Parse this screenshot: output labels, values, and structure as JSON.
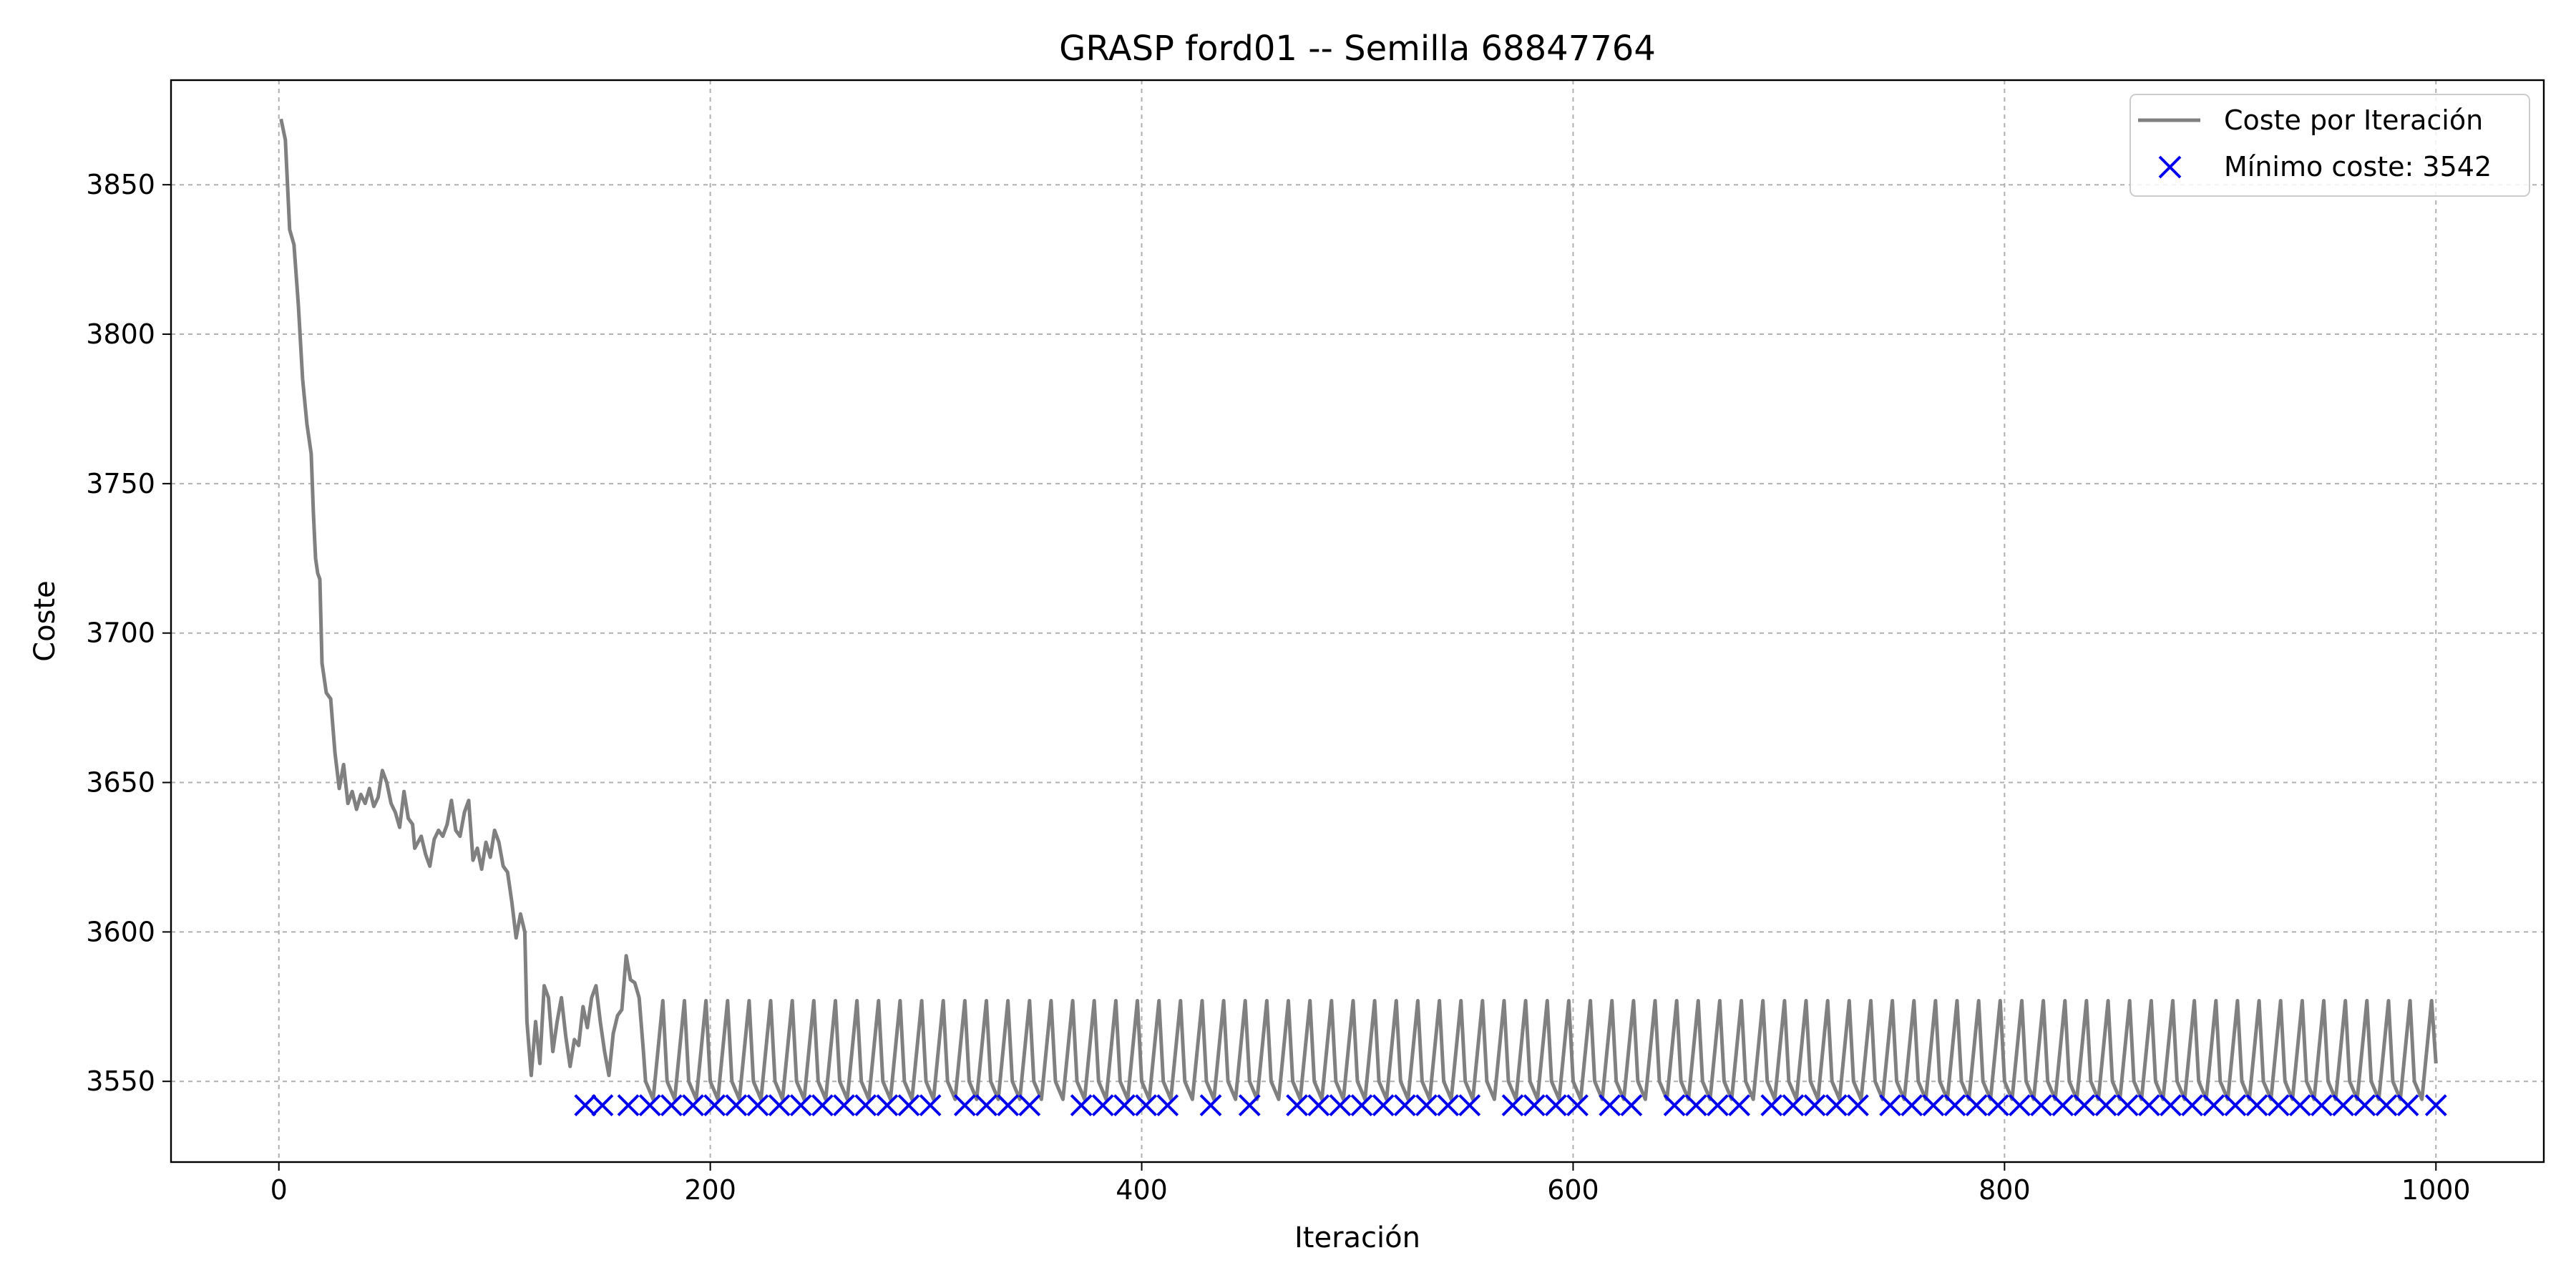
{
  "chart_data": {
    "type": "line",
    "title": "GRASP ford01 -- Semilla 68847764",
    "xlabel": "Iteración",
    "ylabel": "Coste",
    "xlim": [
      -50,
      1050
    ],
    "ylim": [
      3523,
      3885
    ],
    "xticks": [
      0,
      200,
      400,
      600,
      800,
      1000
    ],
    "yticks": [
      3550,
      3600,
      3650,
      3700,
      3750,
      3800,
      3850
    ],
    "grid": true,
    "legend_position": "top-right",
    "legend": {
      "line_label": "Coste por Iteración",
      "marker_label": "Mínimo coste: 3542"
    },
    "series": [
      {
        "name": "Coste por Iteración",
        "kind": "line",
        "color": "#808080",
        "points": [
          [
            1,
            3872
          ],
          [
            3,
            3865
          ],
          [
            5,
            3835
          ],
          [
            7,
            3830
          ],
          [
            9,
            3810
          ],
          [
            11,
            3785
          ],
          [
            13,
            3770
          ],
          [
            15,
            3760
          ],
          [
            16,
            3740
          ],
          [
            17,
            3725
          ],
          [
            18,
            3720
          ],
          [
            19,
            3718
          ],
          [
            20,
            3690
          ],
          [
            22,
            3680
          ],
          [
            24,
            3678
          ],
          [
            26,
            3660
          ],
          [
            28,
            3648
          ],
          [
            30,
            3656
          ],
          [
            32,
            3643
          ],
          [
            34,
            3647
          ],
          [
            36,
            3641
          ],
          [
            38,
            3646
          ],
          [
            40,
            3643
          ],
          [
            42,
            3648
          ],
          [
            44,
            3642
          ],
          [
            46,
            3645
          ],
          [
            48,
            3654
          ],
          [
            50,
            3650
          ],
          [
            52,
            3643
          ],
          [
            54,
            3640
          ],
          [
            56,
            3635
          ],
          [
            58,
            3647
          ],
          [
            60,
            3638
          ],
          [
            62,
            3636
          ],
          [
            63,
            3628
          ],
          [
            66,
            3632
          ],
          [
            68,
            3626
          ],
          [
            70,
            3622
          ],
          [
            72,
            3631
          ],
          [
            74,
            3634
          ],
          [
            76,
            3632
          ],
          [
            78,
            3636
          ],
          [
            80,
            3644
          ],
          [
            82,
            3634
          ],
          [
            84,
            3632
          ],
          [
            86,
            3640
          ],
          [
            88,
            3644
          ],
          [
            90,
            3624
          ],
          [
            92,
            3628
          ],
          [
            94,
            3621
          ],
          [
            96,
            3630
          ],
          [
            98,
            3625
          ],
          [
            100,
            3634
          ],
          [
            102,
            3630
          ],
          [
            104,
            3622
          ],
          [
            106,
            3620
          ],
          [
            108,
            3610
          ],
          [
            110,
            3598
          ],
          [
            112,
            3606
          ],
          [
            114,
            3600
          ],
          [
            115,
            3570
          ],
          [
            117,
            3552
          ],
          [
            119,
            3570
          ],
          [
            121,
            3556
          ],
          [
            123,
            3582
          ],
          [
            125,
            3578
          ],
          [
            127,
            3560
          ],
          [
            129,
            3570
          ],
          [
            131,
            3578
          ],
          [
            133,
            3565
          ],
          [
            135,
            3555
          ],
          [
            137,
            3564
          ],
          [
            139,
            3562
          ],
          [
            141,
            3575
          ],
          [
            143,
            3568
          ],
          [
            145,
            3578
          ],
          [
            147,
            3582
          ],
          [
            149,
            3570
          ],
          [
            151,
            3560
          ],
          [
            153,
            3552
          ],
          [
            155,
            3566
          ],
          [
            157,
            3572
          ],
          [
            159,
            3574
          ],
          [
            161,
            3592
          ],
          [
            163,
            3584
          ],
          [
            165,
            3583
          ],
          [
            167,
            3578
          ],
          [
            169,
            3560
          ]
        ]
      }
    ],
    "oscillation": {
      "start": 170,
      "end": 1000,
      "period": 10,
      "low": 3544,
      "high": 3577
    },
    "minima": {
      "name": "Mínimo coste: 3542",
      "kind": "scatter",
      "marker": "x",
      "color": "#0000ee",
      "y": 3542,
      "x": [
        142,
        150,
        162,
        172,
        182,
        192,
        202,
        212,
        222,
        232,
        242,
        252,
        262,
        272,
        282,
        292,
        302,
        318,
        328,
        338,
        348,
        372,
        382,
        392,
        402,
        412,
        432,
        450,
        472,
        482,
        492,
        502,
        512,
        522,
        532,
        542,
        552,
        572,
        582,
        592,
        602,
        617,
        627,
        647,
        657,
        667,
        677,
        692,
        702,
        712,
        722,
        732,
        747,
        757,
        767,
        777,
        787,
        797,
        807,
        817,
        827,
        837,
        847,
        857,
        867,
        877,
        887,
        897,
        907,
        917,
        927,
        937,
        947,
        957,
        967,
        977,
        987,
        1000
      ]
    }
  }
}
